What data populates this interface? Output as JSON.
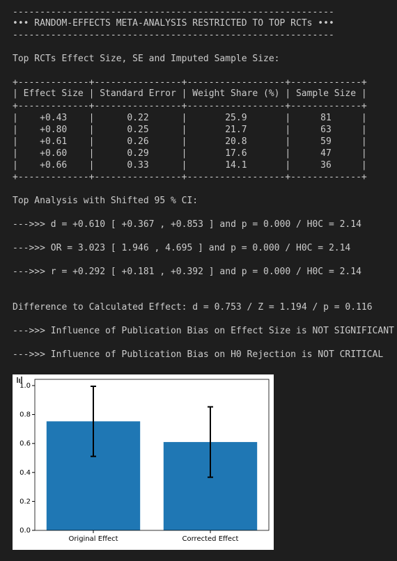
{
  "banner": {
    "title": "••• RANDOM-EFFECTS META-ANALYSIS RESTRICTED TO TOP RCTs •••"
  },
  "table_caption": "Top RCTs Effect Size, SE and Imputed Sample Size:",
  "table": {
    "columns": [
      "Effect Size",
      "Standard Error",
      "Weight Share (%)",
      "Sample Size"
    ],
    "rows": [
      [
        "+0.43",
        "0.22",
        "25.9",
        "81"
      ],
      [
        "+0.80",
        "0.25",
        "21.7",
        "63"
      ],
      [
        "+0.61",
        "0.26",
        "20.8",
        "59"
      ],
      [
        "+0.60",
        "0.29",
        "17.6",
        "47"
      ],
      [
        "+0.66",
        "0.33",
        "14.1",
        "36"
      ]
    ]
  },
  "ci_heading": "Top Analysis with Shifted 95 % CI:",
  "ci_lines": [
    "--->>> d = +0.610 [ +0.367 , +0.853 ] and p = 0.000 / H0C = 2.14",
    "--->>> OR = 3.023 [ 1.946 , 4.695 ] and p = 0.000 / H0C = 2.14",
    "--->>> r = +0.292 [ +0.181 , +0.392 ] and p = 0.000 / H0C = 2.14"
  ],
  "summary_lines": [
    "Difference to Calculated Effect: d = 0.753 / Z = 1.194 / p = 0.116",
    "--->>> Influence of Publication Bias on Effect Size is NOT SIGNIFICANT",
    "--->>> Influence of Publication Bias on H0 Rejection is NOT CRITICAL"
  ],
  "chart_data": {
    "type": "bar",
    "categories": [
      "Original Effect",
      "Corrected Effect"
    ],
    "values": [
      0.753,
      0.61
    ],
    "errors": [
      0.242,
      0.243
    ],
    "color": "#1f77b4",
    "error_color": "#000000",
    "ylim": [
      0,
      1.043
    ],
    "yticks": [
      {
        "value": 0,
        "label": "0.0"
      },
      0.2,
      0.4,
      0.6,
      0.8,
      {
        "value": 1,
        "label": "1.0"
      }
    ]
  }
}
